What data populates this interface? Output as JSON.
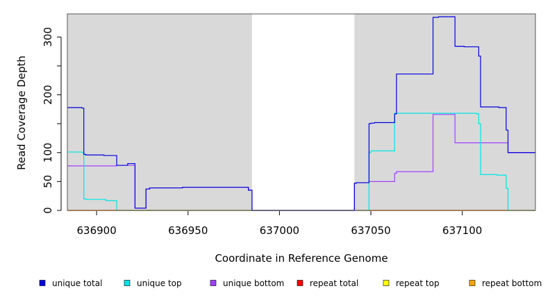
{
  "chart_data": {
    "type": "line",
    "title": "",
    "xlabel": "Coordinate in Reference Genome",
    "ylabel": "Read Coverage Depth",
    "xlim": [
      636884,
      637140
    ],
    "ylim": [
      0,
      340
    ],
    "x_ticks": [
      636900,
      636950,
      637000,
      637050,
      637100
    ],
    "x_tick_labels": [
      "636900",
      "636950",
      "637000",
      "637050",
      "637100"
    ],
    "y_ticks": [
      0,
      50,
      100,
      150,
      200,
      250,
      300
    ],
    "y_tick_labels": [
      "0",
      "50",
      "100",
      "",
      "200",
      "",
      "300"
    ],
    "shaded_regions": [
      {
        "x0": 636884,
        "x1": 636985,
        "color": "#d9d9d9"
      },
      {
        "x0": 637041,
        "x1": 637140,
        "color": "#d9d9d9"
      }
    ],
    "legend_position": "bottom",
    "series": [
      {
        "name": "unique total",
        "color": "#0000dd",
        "points": [
          [
            636884,
            178
          ],
          [
            636892,
            178
          ],
          [
            636892,
            177
          ],
          [
            636893,
            177
          ],
          [
            636893,
            97
          ],
          [
            636894,
            97
          ],
          [
            636894,
            96
          ],
          [
            636904,
            96
          ],
          [
            636904,
            95
          ],
          [
            636911,
            95
          ],
          [
            636911,
            78
          ],
          [
            636917,
            78
          ],
          [
            636917,
            81
          ],
          [
            636921,
            81
          ],
          [
            636921,
            4
          ],
          [
            636927,
            4
          ],
          [
            636927,
            37
          ],
          [
            636929,
            37
          ],
          [
            636929,
            39
          ],
          [
            636947,
            39
          ],
          [
            636947,
            40
          ],
          [
            636983,
            40
          ],
          [
            636983,
            35
          ],
          [
            636985,
            35
          ],
          [
            636985,
            0
          ],
          [
            637041,
            0
          ],
          [
            637041,
            47
          ],
          [
            637042,
            47
          ],
          [
            637042,
            48
          ],
          [
            637049,
            48
          ],
          [
            637049,
            150
          ],
          [
            637050,
            150
          ],
          [
            637050,
            151
          ],
          [
            637052,
            151
          ],
          [
            637052,
            152
          ],
          [
            637063,
            152
          ],
          [
            637063,
            167
          ],
          [
            637064,
            167
          ],
          [
            637064,
            236
          ],
          [
            637084,
            236
          ],
          [
            637084,
            334
          ],
          [
            637087,
            334
          ],
          [
            637087,
            335
          ],
          [
            637096,
            335
          ],
          [
            637096,
            284
          ],
          [
            637101,
            284
          ],
          [
            637101,
            283
          ],
          [
            637109,
            283
          ],
          [
            637109,
            267
          ],
          [
            637110,
            267
          ],
          [
            637110,
            179
          ],
          [
            637120,
            179
          ],
          [
            637120,
            178
          ],
          [
            637124,
            178
          ],
          [
            637124,
            139
          ],
          [
            637125,
            139
          ],
          [
            637125,
            100
          ],
          [
            637140,
            100
          ]
        ]
      },
      {
        "name": "unique top",
        "color": "#00e5e5",
        "points": [
          [
            636884,
            101
          ],
          [
            636892,
            101
          ],
          [
            636892,
            100
          ],
          [
            636893,
            100
          ],
          [
            636893,
            20
          ],
          [
            636894,
            20
          ],
          [
            636894,
            19
          ],
          [
            636905,
            19
          ],
          [
            636905,
            17
          ],
          [
            636911,
            17
          ],
          [
            636911,
            0
          ],
          [
            637049,
            0
          ],
          [
            637049,
            100
          ],
          [
            637050,
            100
          ],
          [
            637050,
            103
          ],
          [
            637063,
            103
          ],
          [
            637063,
            168
          ],
          [
            637108,
            168
          ],
          [
            637108,
            167
          ],
          [
            637109,
            167
          ],
          [
            637109,
            150
          ],
          [
            637110,
            150
          ],
          [
            637110,
            62
          ],
          [
            637119,
            62
          ],
          [
            637119,
            61
          ],
          [
            637124,
            61
          ],
          [
            637124,
            38
          ],
          [
            637125,
            38
          ],
          [
            637125,
            0
          ],
          [
            637140,
            0
          ]
        ]
      },
      {
        "name": "unique bottom",
        "color": "#a040ff",
        "points": [
          [
            636884,
            77
          ],
          [
            636911,
            77
          ],
          [
            636911,
            78
          ],
          [
            636921,
            78
          ],
          [
            636921,
            4
          ],
          [
            636927,
            4
          ],
          [
            636927,
            37
          ],
          [
            636929,
            37
          ],
          [
            636929,
            39
          ],
          [
            636947,
            39
          ],
          [
            636947,
            40
          ],
          [
            636983,
            40
          ],
          [
            636983,
            35
          ],
          [
            636985,
            35
          ],
          [
            636985,
            0
          ],
          [
            637041,
            0
          ],
          [
            637041,
            47
          ],
          [
            637042,
            47
          ],
          [
            637042,
            48
          ],
          [
            637049,
            48
          ],
          [
            637049,
            50
          ],
          [
            637063,
            50
          ],
          [
            637063,
            64
          ],
          [
            637064,
            64
          ],
          [
            637064,
            67
          ],
          [
            637084,
            67
          ],
          [
            637084,
            166
          ],
          [
            637096,
            166
          ],
          [
            637096,
            117
          ],
          [
            637125,
            117
          ],
          [
            637125,
            100
          ],
          [
            637140,
            100
          ]
        ]
      },
      {
        "name": "repeat total",
        "color": "#ff0000",
        "points": [
          [
            636884,
            0
          ],
          [
            637140,
            0
          ]
        ]
      },
      {
        "name": "repeat top",
        "color": "#ffff00",
        "points": [
          [
            636884,
            0
          ],
          [
            637140,
            0
          ]
        ]
      },
      {
        "name": "repeat bottom",
        "color": "#ffa500",
        "points": [
          [
            636884,
            0
          ],
          [
            637140,
            0
          ]
        ]
      }
    ]
  }
}
